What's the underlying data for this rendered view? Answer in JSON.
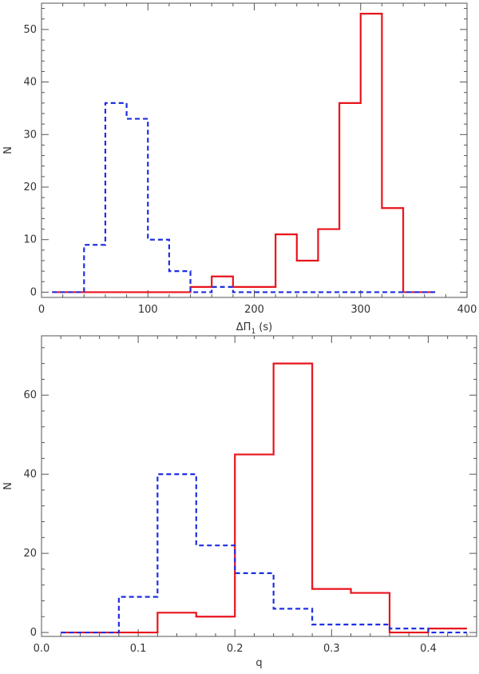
{
  "chart_data": [
    {
      "type": "histogram",
      "xlabel": "ΔΠ",
      "xlabel_sub": "1",
      "xlabel_unit": "(s)",
      "ylabel": "N",
      "xlim": [
        0,
        400
      ],
      "ylim": [
        -1,
        55
      ],
      "xticks": [
        0,
        100,
        200,
        300,
        400
      ],
      "yticks": [
        0,
        10,
        20,
        30,
        40,
        50
      ],
      "grid": false,
      "series": [
        {
          "color": "#e8141c",
          "dash": "solid",
          "edges": [
            10,
            140,
            160,
            180,
            200,
            220,
            240,
            260,
            280,
            300,
            320,
            340,
            370
          ],
          "values": [
            0,
            1,
            3,
            1,
            1,
            11,
            6,
            12,
            36,
            53,
            16,
            0
          ]
        },
        {
          "color": "#1f2fe0",
          "dash": "dashed",
          "edges": [
            10,
            40,
            60,
            80,
            100,
            120,
            140,
            160,
            180,
            370
          ],
          "values": [
            0,
            9,
            36,
            33,
            10,
            4,
            0,
            1,
            0
          ]
        }
      ]
    },
    {
      "type": "histogram",
      "xlabel": "q",
      "ylabel": "N",
      "xlim": [
        0,
        0.45
      ],
      "ylim": [
        -1,
        75
      ],
      "xticks": [
        0.0,
        0.1,
        0.2,
        0.3,
        0.4
      ],
      "xtick_labels": [
        "0.0",
        "0.1",
        "0.2",
        "0.3",
        "0.4"
      ],
      "yticks": [
        0,
        20,
        40,
        60
      ],
      "grid": false,
      "series": [
        {
          "color": "#e8141c",
          "dash": "solid",
          "edges": [
            0.02,
            0.12,
            0.16,
            0.2,
            0.24,
            0.28,
            0.32,
            0.36,
            0.4,
            0.44
          ],
          "values": [
            0,
            5,
            4,
            45,
            68,
            11,
            10,
            0,
            1
          ]
        },
        {
          "color": "#1f2fe0",
          "dash": "dashed",
          "edges": [
            0.02,
            0.08,
            0.12,
            0.16,
            0.2,
            0.24,
            0.28,
            0.36,
            0.4,
            0.44
          ],
          "values": [
            0,
            9,
            40,
            22,
            15,
            6,
            2,
            1,
            0
          ]
        }
      ]
    }
  ]
}
